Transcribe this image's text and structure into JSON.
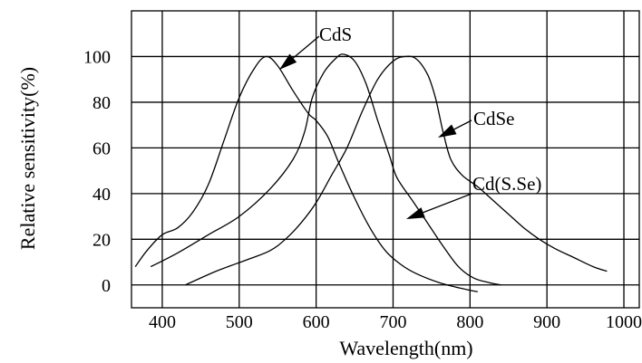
{
  "chart_data": {
    "type": "line",
    "title": "",
    "xlabel": "Wavelength(nm)",
    "ylabel": "Relative sensitivity(%)",
    "xlim": [
      360,
      1020
    ],
    "ylim": [
      -10,
      120
    ],
    "x_ticks": [
      400,
      500,
      600,
      700,
      800,
      900,
      1000
    ],
    "x_tick_labels": [
      "400",
      "500",
      "600",
      "700",
      "800",
      "900",
      "1000"
    ],
    "y_ticks": [
      0,
      20,
      40,
      60,
      80,
      100
    ],
    "y_tick_labels": [
      "0",
      "20",
      "40",
      "60",
      "80",
      "100"
    ],
    "grid": true,
    "legend": "none",
    "series": [
      {
        "name": "CdS",
        "points": [
          [
            365,
            8
          ],
          [
            380,
            15
          ],
          [
            400,
            22
          ],
          [
            420,
            25
          ],
          [
            440,
            32
          ],
          [
            460,
            44
          ],
          [
            480,
            63
          ],
          [
            500,
            82
          ],
          [
            520,
            95
          ],
          [
            535,
            100
          ],
          [
            550,
            96
          ],
          [
            570,
            85
          ],
          [
            590,
            75
          ],
          [
            600,
            72
          ],
          [
            615,
            65
          ],
          [
            630,
            53
          ],
          [
            650,
            38
          ],
          [
            670,
            25
          ],
          [
            690,
            15
          ],
          [
            710,
            9
          ],
          [
            730,
            5
          ],
          [
            760,
            1
          ],
          [
            795,
            -2
          ],
          [
            810,
            -3
          ]
        ]
      },
      {
        "name": "CdSe",
        "points": [
          [
            385,
            8
          ],
          [
            420,
            14
          ],
          [
            460,
            22
          ],
          [
            500,
            30
          ],
          [
            540,
            42
          ],
          [
            570,
            55
          ],
          [
            585,
            67
          ],
          [
            595,
            82
          ],
          [
            610,
            93
          ],
          [
            625,
            99
          ],
          [
            635,
            101
          ],
          [
            650,
            98
          ],
          [
            665,
            88
          ],
          [
            680,
            72
          ],
          [
            695,
            57
          ],
          [
            705,
            47
          ],
          [
            725,
            37
          ],
          [
            745,
            27
          ],
          [
            765,
            17
          ],
          [
            785,
            8
          ],
          [
            805,
            3
          ],
          [
            825,
            1
          ],
          [
            840,
            0
          ]
        ]
      },
      {
        "name": "Cd(S.Se)",
        "points": [
          [
            430,
            0
          ],
          [
            470,
            6
          ],
          [
            510,
            11
          ],
          [
            540,
            15
          ],
          [
            560,
            20
          ],
          [
            580,
            27
          ],
          [
            600,
            36
          ],
          [
            620,
            48
          ],
          [
            640,
            60
          ],
          [
            660,
            76
          ],
          [
            680,
            90
          ],
          [
            700,
            98
          ],
          [
            715,
            100
          ],
          [
            730,
            99
          ],
          [
            745,
            92
          ],
          [
            755,
            82
          ],
          [
            765,
            67
          ],
          [
            775,
            55
          ],
          [
            790,
            48
          ],
          [
            810,
            43
          ],
          [
            830,
            37
          ],
          [
            850,
            31
          ],
          [
            870,
            25
          ],
          [
            890,
            20
          ],
          [
            910,
            16
          ],
          [
            935,
            12
          ],
          [
            960,
            8
          ],
          [
            978,
            6
          ]
        ]
      }
    ],
    "annotations": [
      {
        "text": "CdS",
        "series": "CdS"
      },
      {
        "text": "CdSe",
        "series": "CdSe"
      },
      {
        "text": "Cd(S.Se)",
        "series": "Cd(S.Se)"
      }
    ]
  }
}
